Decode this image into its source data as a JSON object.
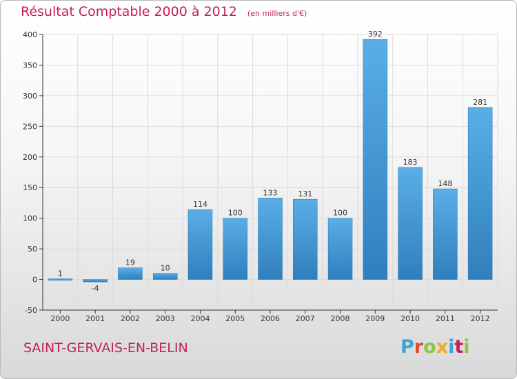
{
  "chart_data": {
    "type": "bar",
    "title": "Résultat Comptable 2000 à 2012",
    "subtitle": "(en milliers d'€)",
    "categories": [
      "2000",
      "2001",
      "2002",
      "2003",
      "2004",
      "2005",
      "2006",
      "2007",
      "2008",
      "2009",
      "2010",
      "2011",
      "2012"
    ],
    "values": [
      1,
      -4,
      19,
      10,
      114,
      100,
      133,
      131,
      100,
      392,
      183,
      148,
      281
    ],
    "ylim": [
      -50,
      400
    ],
    "yticks": [
      -50,
      0,
      50,
      100,
      150,
      200,
      250,
      300,
      350,
      400
    ],
    "grid": true,
    "legend": "none",
    "bar_color_light": "#5aaee6",
    "bar_color_dark": "#2f7fbd"
  },
  "footer": {
    "location": "SAINT-GERVAIS-EN-BELIN",
    "logo_text": "Proxiti",
    "logo_colors": [
      "#3aa3d8",
      "#e6462e",
      "#8cc63f",
      "#f4a81d",
      "#3aa3d8",
      "#c41e5c",
      "#8cc63f"
    ]
  },
  "colors": {
    "title": "#c41e5c",
    "grid": "#dcdcdc",
    "axis": "#333333"
  }
}
